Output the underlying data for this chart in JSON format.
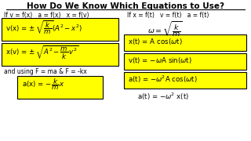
{
  "title": "How Do We Know Which Equations to Use?",
  "bg_color": "#ffffff",
  "yellow": "#ffff00",
  "left_header": "If v = f(x)   a = f(x)   x = f(v)",
  "right_header": "If x = f(t)   v = f(t)   a = f(t)",
  "and_text": "and using F = ma & F = -kx"
}
